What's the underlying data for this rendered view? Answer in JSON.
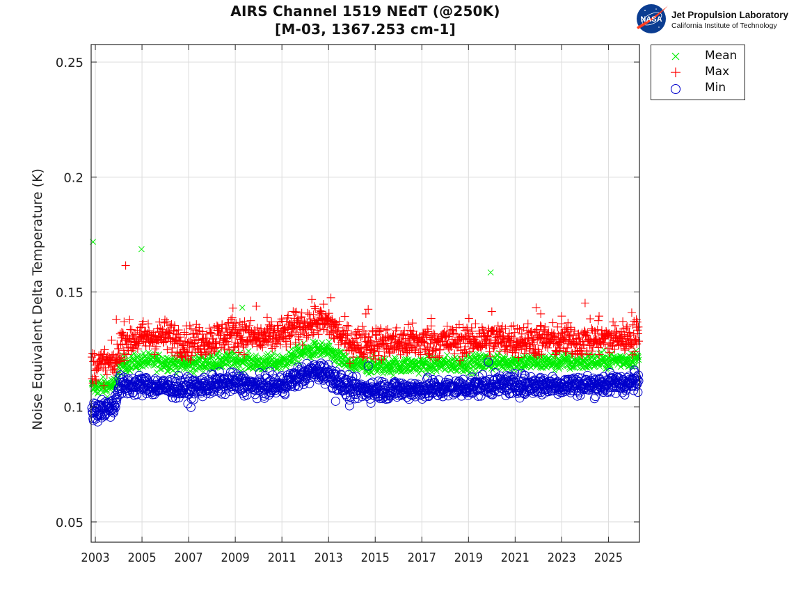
{
  "header": {
    "title_line1": "AIRS Channel 1519 NEdT (@250K)",
    "title_line2": "[M-03, 1367.253 cm-1]"
  },
  "logo": {
    "icon": "nasa-meatball-icon",
    "badge_text": "NASA",
    "name": "Jet Propulsion Laboratory",
    "subtitle": "California Institute of Technology"
  },
  "chart_data": {
    "type": "scatter",
    "title": "AIRS Channel 1519 NEdT (@250K) [M-03, 1367.253 cm-1]",
    "xlabel": "",
    "ylabel": "Noise Equivalent Delta Temperature (K)",
    "xlim": [
      2002.82,
      2026.33
    ],
    "ylim": [
      0.0412,
      0.2576
    ],
    "xticks": [
      2003,
      2005,
      2007,
      2009,
      2011,
      2013,
      2015,
      2017,
      2019,
      2021,
      2023,
      2025
    ],
    "xtick_labels": [
      "2003",
      "2005",
      "2007",
      "2009",
      "2011",
      "2013",
      "2015",
      "2017",
      "2019",
      "2021",
      "2023",
      "2025"
    ],
    "yticks": [
      0.05,
      0.1,
      0.15,
      0.2,
      0.25
    ],
    "ytick_labels": [
      "0.05",
      "0.1",
      "0.15",
      "0.2",
      "0.25"
    ],
    "grid": true,
    "legend": {
      "placement": "outside-top-right",
      "entries": [
        {
          "label": "Mean",
          "marker": "x",
          "color": "#00ee00"
        },
        {
          "label": "Max",
          "marker": "+",
          "color": "#ff0000"
        },
        {
          "label": "Min",
          "marker": "o",
          "color": "#0000cc"
        }
      ]
    },
    "series": [
      {
        "name": "Mean",
        "marker": "x",
        "color": "#00ee00",
        "trend_x": [
          2002.85,
          2003.9,
          2004.0,
          2005.0,
          2006.0,
          2007.0,
          2008.0,
          2009.0,
          2010.0,
          2011.0,
          2011.8,
          2012.5,
          2013.0,
          2013.7,
          2014.0,
          2016.0,
          2018.0,
          2020.0,
          2022.0,
          2024.0,
          2026.3
        ],
        "trend_y": [
          0.1085,
          0.1095,
          0.118,
          0.12,
          0.1195,
          0.1185,
          0.1195,
          0.1205,
          0.119,
          0.1195,
          0.1235,
          0.125,
          0.124,
          0.1195,
          0.118,
          0.118,
          0.1185,
          0.1195,
          0.1195,
          0.1195,
          0.121
        ],
        "spread": 0.0018,
        "outliers": [
          [
            2002.9,
            0.1718
          ],
          [
            2004.98,
            0.1686
          ],
          [
            2009.3,
            0.1432
          ],
          [
            2019.95,
            0.1585
          ],
          [
            2014.3,
            0.1215
          ],
          [
            2019.75,
            0.1225
          ],
          [
            2022.9,
            0.1235
          ],
          [
            2023.1,
            0.1232
          ]
        ]
      },
      {
        "name": "Max",
        "marker": "+",
        "color": "#ff0000",
        "trend_x": [
          2002.85,
          2003.9,
          2004.1,
          2005.0,
          2006.0,
          2007.0,
          2008.0,
          2009.0,
          2010.0,
          2011.0,
          2011.8,
          2012.5,
          2013.0,
          2013.7,
          2014.0,
          2016.0,
          2018.0,
          2020.0,
          2022.0,
          2024.0,
          2026.3
        ],
        "trend_y": [
          0.118,
          0.119,
          0.129,
          0.13,
          0.131,
          0.128,
          0.1295,
          0.1325,
          0.1295,
          0.1315,
          0.1355,
          0.1375,
          0.1365,
          0.1295,
          0.128,
          0.128,
          0.1285,
          0.1295,
          0.129,
          0.129,
          0.1305
        ],
        "spread": 0.0035,
        "outliers": [
          [
            2004.3,
            0.1615
          ],
          [
            2013.1,
            0.1475
          ],
          [
            2009.9,
            0.1438
          ],
          [
            2008.9,
            0.143
          ],
          [
            2014.7,
            0.1425
          ],
          [
            2014.6,
            0.1405
          ],
          [
            2020.0,
            0.1415
          ],
          [
            2024.0,
            0.1452
          ],
          [
            2021.9,
            0.1432
          ],
          [
            2022.1,
            0.1405
          ],
          [
            2026.0,
            0.141
          ],
          [
            2026.2,
            0.138
          ],
          [
            2017.4,
            0.1385
          ],
          [
            2019.3,
            0.1362
          ],
          [
            2024.6,
            0.1395
          ],
          [
            2023.0,
            0.1395
          ],
          [
            2003.9,
            0.138
          ],
          [
            2016.6,
            0.1365
          ]
        ]
      },
      {
        "name": "Min",
        "marker": "o",
        "color": "#0000cc",
        "trend_x": [
          2002.85,
          2003.8,
          2004.0,
          2005.0,
          2006.0,
          2007.0,
          2008.0,
          2009.0,
          2010.0,
          2011.0,
          2011.8,
          2012.5,
          2013.0,
          2013.6,
          2014.0,
          2016.0,
          2018.0,
          2020.0,
          2022.0,
          2024.0,
          2026.3
        ],
        "trend_y": [
          0.0985,
          0.1,
          0.109,
          0.1095,
          0.1085,
          0.108,
          0.1095,
          0.1105,
          0.1085,
          0.1095,
          0.1135,
          0.1155,
          0.1145,
          0.1095,
          0.1075,
          0.1075,
          0.108,
          0.1095,
          0.1095,
          0.1095,
          0.1105
        ],
        "spread": 0.0022,
        "outliers": [
          [
            2003.1,
            0.0935
          ],
          [
            2007.1,
            0.0998
          ],
          [
            2013.3,
            0.1025
          ],
          [
            2013.9,
            0.1005
          ],
          [
            2014.7,
            0.1178
          ],
          [
            2019.85,
            0.1195
          ],
          [
            2026.1,
            0.116
          ]
        ]
      }
    ]
  }
}
